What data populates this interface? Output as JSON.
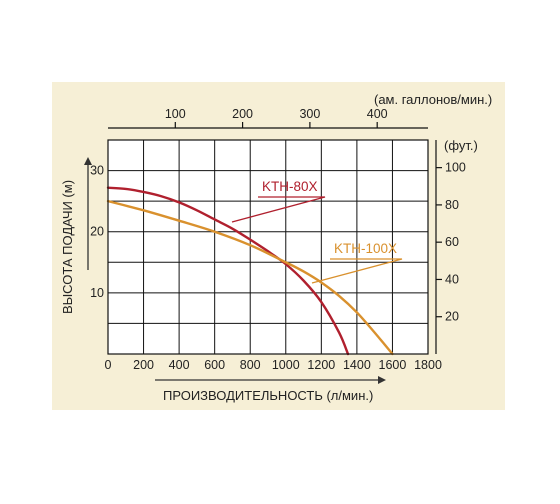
{
  "chart_data": {
    "type": "line",
    "xlabel": "ПРОИЗВОДИТЕЛЬНОСТЬ (л/мин.)",
    "ylabel": "ВЫСОТА ПОДАЧИ (м)",
    "x_top_label": "(ам. галлонов/мин.)",
    "y_right_label": "(фут.)",
    "xlim": [
      0,
      1800
    ],
    "ylim": [
      0,
      35
    ],
    "x_ticks": [
      "0",
      "200",
      "400",
      "600",
      "800",
      "1000",
      "1200",
      "1400",
      "1600",
      "1800"
    ],
    "y_ticks": [
      "10",
      "20",
      "30"
    ],
    "x_top_ticks": [
      "100",
      "200",
      "300",
      "400"
    ],
    "y_right_ticks": [
      "20",
      "40",
      "60",
      "80",
      "100"
    ],
    "grid": true,
    "series": [
      {
        "name": "KTH-80X",
        "color": "#b0202e",
        "x": [
          0,
          100,
          200,
          300,
          400,
          500,
          600,
          700,
          800,
          900,
          1000,
          1100,
          1200,
          1300,
          1350
        ],
        "y": [
          27.2,
          27.0,
          26.5,
          25.8,
          24.8,
          23.5,
          22.0,
          20.5,
          18.7,
          16.8,
          14.7,
          12.0,
          8.5,
          3.5,
          0
        ]
      },
      {
        "name": "KTH-100X",
        "color": "#d9912e",
        "x": [
          0,
          200,
          400,
          600,
          800,
          1000,
          1100,
          1200,
          1300,
          1400,
          1500,
          1600
        ],
        "y": [
          25.0,
          23.5,
          21.8,
          20.0,
          17.8,
          15.0,
          13.5,
          11.7,
          9.5,
          6.8,
          3.5,
          0
        ]
      }
    ]
  }
}
